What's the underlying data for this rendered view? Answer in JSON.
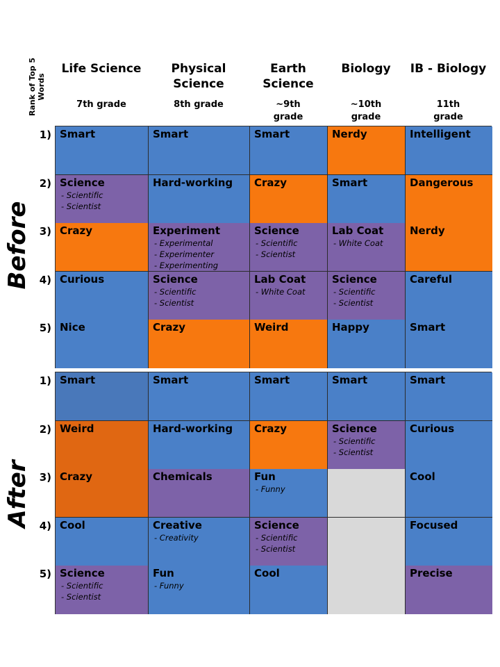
{
  "rank_axis_title": "Rank of Top 5 Words",
  "columns": [
    {
      "subject": "Life Science",
      "grade": "7th grade"
    },
    {
      "subject": "Physical Science",
      "grade": "8th grade"
    },
    {
      "subject": "Earth Science",
      "grade": "~9th grade"
    },
    {
      "subject": "Biology",
      "grade": "~10th grade"
    },
    {
      "subject": "IB - Biology",
      "grade": "11th grade"
    }
  ],
  "ranks": [
    "1)",
    "2)",
    "3)",
    "4)",
    "5)"
  ],
  "colors": {
    "blue": "#4a80c8",
    "orange": "#f7780f",
    "purple": "#7d62a8",
    "empty": "#d9d9d9"
  },
  "sections": [
    {
      "label": "Before",
      "rows": [
        [
          {
            "word": "Smart",
            "color": "blue",
            "subs": []
          },
          {
            "word": "Smart",
            "color": "blue",
            "subs": []
          },
          {
            "word": "Smart",
            "color": "blue",
            "subs": []
          },
          {
            "word": "Nerdy",
            "color": "orange",
            "subs": []
          },
          {
            "word": "Intelligent",
            "color": "blue",
            "subs": []
          }
        ],
        [
          {
            "word": "Science",
            "color": "purple",
            "subs": [
              "- Scientific",
              "- Scientist"
            ]
          },
          {
            "word": "Hard-working",
            "color": "blue",
            "subs": []
          },
          {
            "word": "Crazy",
            "color": "orange",
            "subs": []
          },
          {
            "word": "Smart",
            "color": "blue",
            "subs": []
          },
          {
            "word": "Dangerous",
            "color": "orange",
            "subs": []
          }
        ],
        [
          {
            "word": "Crazy",
            "color": "orange",
            "subs": []
          },
          {
            "word": "Experiment",
            "color": "purple",
            "subs": [
              "- Experimental",
              "- Experimenter",
              "- Experimenting"
            ]
          },
          {
            "word": "Science",
            "color": "purple",
            "subs": [
              "- Scientific",
              "- Scientist"
            ]
          },
          {
            "word": "Lab Coat",
            "color": "purple",
            "subs": [
              "- White Coat"
            ]
          },
          {
            "word": "Nerdy",
            "color": "orange",
            "subs": []
          }
        ],
        [
          {
            "word": "Curious",
            "color": "blue",
            "subs": []
          },
          {
            "word": "Science",
            "color": "purple",
            "subs": [
              "- Scientific",
              "- Scientist"
            ]
          },
          {
            "word": "Lab Coat",
            "color": "purple",
            "subs": [
              "- White Coat"
            ]
          },
          {
            "word": "Science",
            "color": "purple",
            "subs": [
              "- Scientific",
              "- Scientist"
            ]
          },
          {
            "word": "Careful",
            "color": "blue",
            "subs": []
          }
        ],
        [
          {
            "word": "Nice",
            "color": "blue",
            "subs": []
          },
          {
            "word": "Crazy",
            "color": "orange",
            "subs": []
          },
          {
            "word": "Weird",
            "color": "orange",
            "subs": []
          },
          {
            "word": "Happy",
            "color": "blue",
            "subs": []
          },
          {
            "word": "Smart",
            "color": "blue",
            "subs": []
          }
        ]
      ]
    },
    {
      "label": "After",
      "rows": [
        [
          {
            "word": "Smart",
            "color": "steel",
            "subs": []
          },
          {
            "word": "Smart",
            "color": "blue",
            "subs": []
          },
          {
            "word": "Smart",
            "color": "blue",
            "subs": []
          },
          {
            "word": "Smart",
            "color": "blue",
            "subs": []
          },
          {
            "word": "Smart",
            "color": "blue",
            "subs": []
          }
        ],
        [
          {
            "word": "Weird",
            "color": "dorange",
            "subs": []
          },
          {
            "word": "Hard-working",
            "color": "blue",
            "subs": []
          },
          {
            "word": "Crazy",
            "color": "orange",
            "subs": []
          },
          {
            "word": "Science",
            "color": "purple",
            "subs": [
              "- Scientific",
              "- Scientist"
            ]
          },
          {
            "word": "Curious",
            "color": "blue",
            "subs": []
          }
        ],
        [
          {
            "word": "Crazy",
            "color": "dorange",
            "subs": []
          },
          {
            "word": "Chemicals",
            "color": "purple",
            "subs": []
          },
          {
            "word": "Fun",
            "color": "blue",
            "subs": [
              "- Funny"
            ]
          },
          {
            "word": "",
            "color": "empty",
            "subs": []
          },
          {
            "word": "Cool",
            "color": "blue",
            "subs": []
          }
        ],
        [
          {
            "word": "Cool",
            "color": "blue",
            "subs": []
          },
          {
            "word": "Creative",
            "color": "blue",
            "subs": [
              "- Creativity"
            ]
          },
          {
            "word": "Science",
            "color": "purple",
            "subs": [
              "- Scientific",
              "- Scientist"
            ]
          },
          {
            "word": "",
            "color": "empty",
            "subs": []
          },
          {
            "word": "Focused",
            "color": "blue",
            "subs": []
          }
        ],
        [
          {
            "word": "Science",
            "color": "purple",
            "subs": [
              "- Scientific",
              "- Scientist"
            ]
          },
          {
            "word": "Fun",
            "color": "blue",
            "subs": [
              "- Funny"
            ]
          },
          {
            "word": "Cool",
            "color": "blue",
            "subs": []
          },
          {
            "word": "",
            "color": "empty",
            "subs": []
          },
          {
            "word": "Precise",
            "color": "purple",
            "subs": []
          }
        ]
      ]
    }
  ]
}
